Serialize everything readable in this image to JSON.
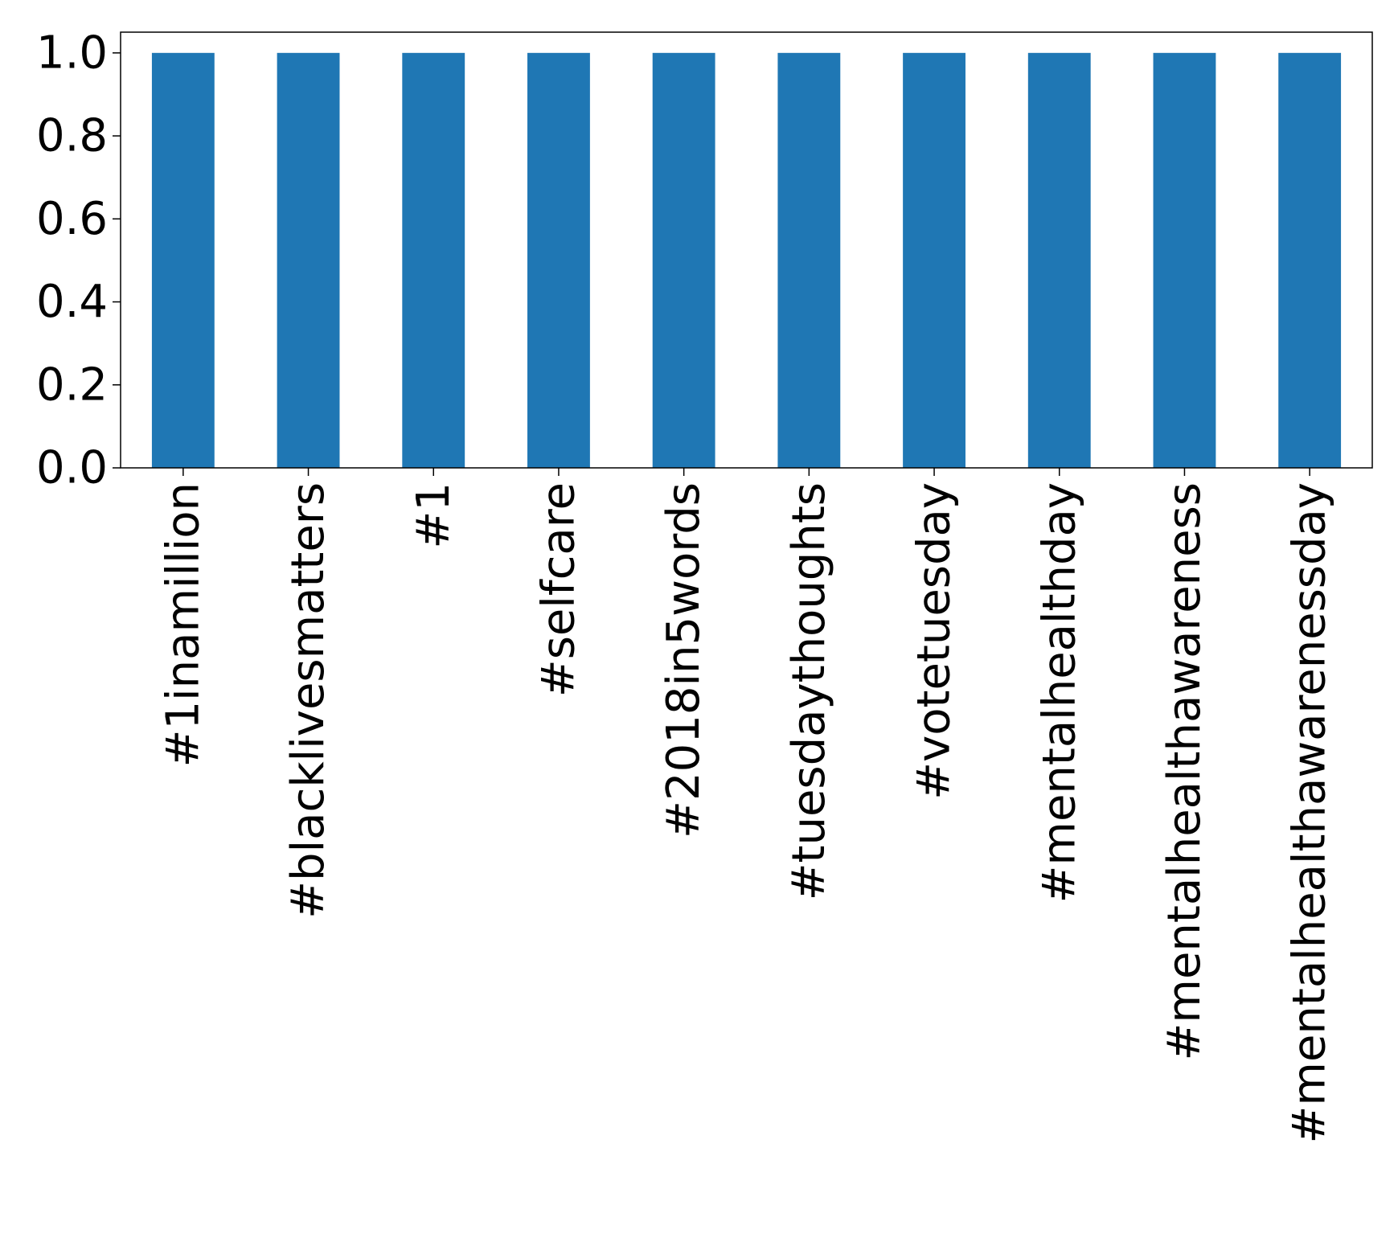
{
  "chart_data": {
    "type": "bar",
    "categories": [
      "#1inamillion",
      "#blacklivesmatters",
      "#1",
      "#selfcare",
      "#2018in5words",
      "#tuesdaythoughts",
      "#votetuesday",
      "#mentalhealthday",
      "#mentalhealthawareness",
      "#mentalhealthawarenessday"
    ],
    "values": [
      1.0,
      1.0,
      1.0,
      1.0,
      1.0,
      1.0,
      1.0,
      1.0,
      1.0,
      1.0
    ],
    "yticks": [
      "0.0",
      "0.2",
      "0.4",
      "0.6",
      "0.8",
      "1.0"
    ],
    "ylim": [
      0,
      1.05
    ],
    "grid": false,
    "bar_color": "#1f77b4"
  }
}
